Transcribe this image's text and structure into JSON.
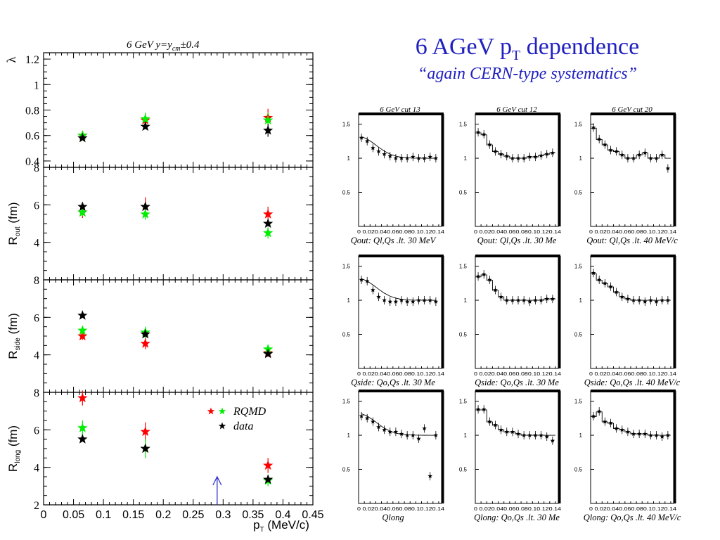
{
  "slide": {
    "title_main": "6 AGeV p",
    "title_sub": "T",
    "title_end": " dependence",
    "subtitle": "“again CERN-type systematics”"
  },
  "chart_data": [
    {
      "type": "scatter",
      "title": "6 GeV  y=y",
      "title_sub": "cm",
      "title_end": "±0.4",
      "xlabel": "p",
      "xlabel_sub": "T",
      "xlabel_end": " (MeV/c)",
      "xlim": [
        0,
        0.45
      ],
      "xticks": [
        "0",
        "0.05",
        "0.1",
        "0.15",
        "0.2",
        "0.25",
        "0.3",
        "0.35",
        "0.4",
        "0.45"
      ],
      "legend": [
        {
          "label": "RQMD",
          "colors": [
            "#ff0000",
            "#00ee00"
          ]
        },
        {
          "label": "data",
          "colors": [
            "#000000"
          ]
        }
      ],
      "arrow_x": 0.29,
      "panels": [
        {
          "ylabel": "λ",
          "ylim": [
            0.35,
            1.25
          ],
          "yticks": [
            "0.4",
            "0.6",
            "0.8",
            "1",
            "1.2"
          ],
          "ytick_values": [
            0.4,
            0.6,
            0.8,
            1.0,
            1.2
          ],
          "series": [
            {
              "name": "RQMD",
              "color": "#ff0000",
              "points": [
                [
                  0.065,
                  0.6
                ],
                [
                  0.17,
                  0.72
                ],
                [
                  0.375,
                  0.74
                ]
              ],
              "err": [
                0.02,
                0.05,
                0.07
              ]
            },
            {
              "name": "RQMD",
              "color": "#00ee00",
              "points": [
                [
                  0.065,
                  0.6
                ],
                [
                  0.17,
                  0.73
                ],
                [
                  0.375,
                  0.72
                ]
              ],
              "err": [
                0.02,
                0.05,
                0.06
              ]
            },
            {
              "name": "data",
              "color": "#000000",
              "points": [
                [
                  0.065,
                  0.58
                ],
                [
                  0.17,
                  0.67
                ],
                [
                  0.375,
                  0.64
                ]
              ],
              "err": [
                0.01,
                0.02,
                0.05
              ]
            }
          ]
        },
        {
          "ylabel": "R",
          "ylabel_sub": "out",
          "ylabel_end": " (fm)",
          "ylim": [
            2,
            8
          ],
          "yticks": [
            "4",
            "6",
            "8"
          ],
          "ytick_values": [
            4,
            6,
            8
          ],
          "series": [
            {
              "name": "RQMD",
              "color": "#ff0000",
              "points": [
                [
                  0.065,
                  5.6
                ],
                [
                  0.17,
                  5.9
                ],
                [
                  0.375,
                  5.5
                ]
              ],
              "err": [
                0.3,
                0.5,
                0.4
              ]
            },
            {
              "name": "RQMD",
              "color": "#00ee00",
              "points": [
                [
                  0.065,
                  5.6
                ],
                [
                  0.17,
                  5.5
                ],
                [
                  0.375,
                  4.5
                ]
              ],
              "err": [
                0.2,
                0.3,
                0.3
              ]
            },
            {
              "name": "data",
              "color": "#000000",
              "points": [
                [
                  0.065,
                  5.9
                ],
                [
                  0.17,
                  5.9
                ],
                [
                  0.375,
                  5.0
                ]
              ],
              "err": [
                0.1,
                0.15,
                0.15
              ]
            }
          ]
        },
        {
          "ylabel": "R",
          "ylabel_sub": "side",
          "ylabel_end": " (fm)",
          "ylim": [
            2,
            8
          ],
          "yticks": [
            "4",
            "6",
            "8"
          ],
          "ytick_values": [
            4,
            6,
            8
          ],
          "series": [
            {
              "name": "RQMD",
              "color": "#ff0000",
              "points": [
                [
                  0.065,
                  5.0
                ],
                [
                  0.17,
                  4.6
                ],
                [
                  0.375,
                  4.1
                ]
              ],
              "err": [
                0.2,
                0.3,
                0.2
              ]
            },
            {
              "name": "RQMD",
              "color": "#00ee00",
              "points": [
                [
                  0.065,
                  5.3
                ],
                [
                  0.17,
                  5.2
                ],
                [
                  0.375,
                  4.3
                ]
              ],
              "err": [
                0.2,
                0.3,
                0.2
              ]
            },
            {
              "name": "data",
              "color": "#000000",
              "points": [
                [
                  0.065,
                  6.1
                ],
                [
                  0.17,
                  5.1
                ],
                [
                  0.375,
                  4.05
                ]
              ],
              "err": [
                0.1,
                0.1,
                0.1
              ]
            }
          ]
        },
        {
          "ylabel": "R",
          "ylabel_sub": "long",
          "ylabel_end": " (fm)",
          "ylim": [
            2,
            8
          ],
          "yticks": [
            "2",
            "4",
            "6",
            "8"
          ],
          "ytick_values": [
            2,
            4,
            6,
            8
          ],
          "series": [
            {
              "name": "RQMD",
              "color": "#ff0000",
              "points": [
                [
                  0.065,
                  7.7
                ],
                [
                  0.17,
                  5.9
                ],
                [
                  0.375,
                  4.1
                ]
              ],
              "err": [
                0.4,
                0.5,
                0.4
              ]
            },
            {
              "name": "RQMD",
              "color": "#00ee00",
              "points": [
                [
                  0.065,
                  6.1
                ],
                [
                  0.17,
                  5.0
                ],
                [
                  0.375,
                  3.3
                ]
              ],
              "err": [
                0.4,
                0.5,
                0.3
              ]
            },
            {
              "name": "data",
              "color": "#000000",
              "points": [
                [
                  0.065,
                  5.5
                ],
                [
                  0.17,
                  5.0
                ],
                [
                  0.375,
                  3.35
                ]
              ],
              "err": [
                0.1,
                0.15,
                0.1
              ]
            }
          ]
        }
      ]
    },
    {
      "type": "grid-of-histograms",
      "grid_ylim": [
        0,
        1.65
      ],
      "grid_xlim": [
        0,
        0.145
      ],
      "ytick_values": [
        0.5,
        1,
        1.5
      ],
      "yticks": [
        "0.5",
        "1",
        "1.5"
      ],
      "xtick_text": "0  0.020.040.060.080.10.120.14",
      "columns": [
        {
          "title": "6 GeV cut 13"
        },
        {
          "title": "6 GeV cut 12"
        },
        {
          "title": "6 GeV cut 20"
        }
      ],
      "rows": [
        {
          "labels": [
            "Qout:  Ql,Qs .lt.  30 MeV",
            "Qout:  Ql,Qs .lt.  30 Me",
            "Qout:  Ql,Qs .lt.  40 MeV/c"
          ]
        },
        {
          "labels": [
            "Qside: Qo,Qs .lt.  30 Me",
            "Qside: Qo,Qs .lt.  30 Me",
            "Qside: Qo,Qs .lt.  40 MeV/c"
          ]
        },
        {
          "labels": [
            "Qlong",
            "Qlong: Qo,Qs .lt.  30 Me",
            "Qlong: Qo,Qs .lt.  40 MeV/c"
          ]
        }
      ],
      "cells": [
        [
          {
            "x": [
              0.005,
              0.015,
              0.025,
              0.035,
              0.045,
              0.055,
              0.065,
              0.075,
              0.085,
              0.095,
              0.105,
              0.115,
              0.125,
              0.135
            ],
            "y": [
              1.3,
              1.25,
              1.15,
              1.1,
              1.06,
              1.03,
              1.0,
              1.0,
              1.0,
              1.02,
              1.0,
              1.0,
              1.02,
              1.0
            ],
            "fit": "curve"
          },
          {
            "x": [
              0.005,
              0.015,
              0.025,
              0.035,
              0.045,
              0.055,
              0.065,
              0.075,
              0.085,
              0.095,
              0.105,
              0.115,
              0.125,
              0.135
            ],
            "y": [
              1.38,
              1.35,
              1.2,
              1.1,
              1.06,
              1.03,
              1.0,
              1.0,
              1.0,
              1.02,
              1.02,
              1.04,
              1.06,
              1.08
            ],
            "fit": "step"
          },
          {
            "x": [
              0.005,
              0.015,
              0.025,
              0.035,
              0.045,
              0.055,
              0.065,
              0.075,
              0.085,
              0.095,
              0.105,
              0.115,
              0.125,
              0.135
            ],
            "y": [
              1.45,
              1.28,
              1.2,
              1.12,
              1.1,
              1.05,
              1.0,
              1.0,
              1.05,
              1.08,
              1.0,
              1.0,
              1.05,
              0.85
            ],
            "fit": "step"
          }
        ],
        [
          {
            "x": [
              0.005,
              0.015,
              0.025,
              0.035,
              0.045,
              0.055,
              0.065,
              0.075,
              0.085,
              0.095,
              0.105,
              0.115,
              0.125,
              0.135
            ],
            "y": [
              1.3,
              1.28,
              1.15,
              1.05,
              1.0,
              0.98,
              0.98,
              1.0,
              0.98,
              0.98,
              1.0,
              1.0,
              1.0,
              0.98
            ],
            "fit": "curve"
          },
          {
            "x": [
              0.005,
              0.015,
              0.025,
              0.035,
              0.045,
              0.055,
              0.065,
              0.075,
              0.085,
              0.095,
              0.105,
              0.115,
              0.125,
              0.135
            ],
            "y": [
              1.35,
              1.38,
              1.3,
              1.15,
              1.05,
              1.0,
              1.0,
              1.0,
              1.0,
              0.98,
              1.0,
              1.0,
              1.02,
              1.02
            ],
            "fit": "step"
          },
          {
            "x": [
              0.005,
              0.015,
              0.025,
              0.035,
              0.045,
              0.055,
              0.065,
              0.075,
              0.085,
              0.095,
              0.105,
              0.115,
              0.125,
              0.135
            ],
            "y": [
              1.4,
              1.3,
              1.25,
              1.2,
              1.12,
              1.05,
              1.02,
              1.0,
              1.0,
              0.98,
              1.0,
              0.98,
              1.0,
              1.0
            ],
            "fit": "step"
          }
        ],
        [
          {
            "x": [
              0.005,
              0.015,
              0.025,
              0.035,
              0.045,
              0.055,
              0.065,
              0.075,
              0.085,
              0.095,
              0.105,
              0.115,
              0.125,
              0.135
            ],
            "y": [
              1.28,
              1.25,
              1.2,
              1.12,
              1.08,
              1.05,
              1.05,
              1.02,
              1.0,
              1.0,
              0.95,
              1.1,
              0.4,
              1.0
            ],
            "fit": "curve"
          },
          {
            "x": [
              0.005,
              0.015,
              0.025,
              0.035,
              0.045,
              0.055,
              0.065,
              0.075,
              0.085,
              0.095,
              0.105,
              0.115,
              0.125,
              0.135
            ],
            "y": [
              1.38,
              1.38,
              1.2,
              1.15,
              1.08,
              1.05,
              1.05,
              1.02,
              1.0,
              1.0,
              1.0,
              1.0,
              0.98,
              0.92
            ],
            "fit": "step"
          },
          {
            "x": [
              0.005,
              0.015,
              0.025,
              0.035,
              0.045,
              0.055,
              0.065,
              0.075,
              0.085,
              0.095,
              0.105,
              0.115,
              0.125,
              0.135
            ],
            "y": [
              1.28,
              1.35,
              1.2,
              1.18,
              1.1,
              1.08,
              1.05,
              1.02,
              1.02,
              1.02,
              1.0,
              1.0,
              0.98,
              1.0
            ],
            "fit": "step"
          }
        ]
      ]
    }
  ]
}
